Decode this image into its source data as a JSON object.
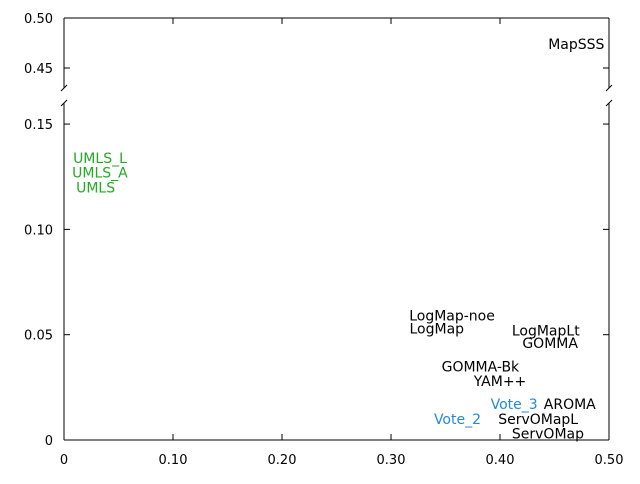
{
  "chart_data": {
    "type": "scatter",
    "title": "",
    "xlabel": "",
    "ylabel": "",
    "xlim": [
      0,
      0.5
    ],
    "ylim": [
      0,
      0.5
    ],
    "y_axis_break": [
      0.16,
      0.43
    ],
    "grid": false,
    "x_ticks": [
      {
        "value": 0,
        "label": "0"
      },
      {
        "value": 0.1,
        "label": "0.10"
      },
      {
        "value": 0.2,
        "label": "0.20"
      },
      {
        "value": 0.3,
        "label": "0.30"
      },
      {
        "value": 0.4,
        "label": "0.40"
      },
      {
        "value": 0.5,
        "label": "0.50"
      }
    ],
    "y_ticks": [
      {
        "value": 0,
        "label": "0"
      },
      {
        "value": 0.05,
        "label": "0.05"
      },
      {
        "value": 0.1,
        "label": "0.10"
      },
      {
        "value": 0.15,
        "label": "0.15"
      },
      {
        "value": 0.45,
        "label": "0.45"
      },
      {
        "value": 0.5,
        "label": "0.50"
      }
    ],
    "colors": {
      "black": "#000000",
      "green": "#22aa22",
      "blue": "#2288dd"
    },
    "points": [
      {
        "label": "MapSSS",
        "x": 0.47,
        "y": 0.474,
        "color": "black"
      },
      {
        "label": "UMLS_L",
        "x": 0.033,
        "y": 0.134,
        "color": "green"
      },
      {
        "label": "UMLS_A",
        "x": 0.033,
        "y": 0.127,
        "color": "green"
      },
      {
        "label": "UMLS",
        "x": 0.029,
        "y": 0.12,
        "color": "green"
      },
      {
        "label": "LogMap-noe",
        "x": 0.356,
        "y": 0.059,
        "color": "black"
      },
      {
        "label": "LogMap",
        "x": 0.342,
        "y": 0.053,
        "color": "black"
      },
      {
        "label": "LogMapLt",
        "x": 0.442,
        "y": 0.052,
        "color": "black"
      },
      {
        "label": "GOMMA",
        "x": 0.446,
        "y": 0.046,
        "color": "black"
      },
      {
        "label": "GOMMA-Bk",
        "x": 0.382,
        "y": 0.035,
        "color": "black"
      },
      {
        "label": "YAM++",
        "x": 0.4,
        "y": 0.028,
        "color": "black"
      },
      {
        "label": "Vote_3",
        "x": 0.413,
        "y": 0.017,
        "color": "blue"
      },
      {
        "label": "AROMA",
        "x": 0.464,
        "y": 0.017,
        "color": "black"
      },
      {
        "label": "Vote_2",
        "x": 0.361,
        "y": 0.01,
        "color": "blue"
      },
      {
        "label": "ServOMapL",
        "x": 0.435,
        "y": 0.01,
        "color": "black"
      },
      {
        "label": "ServOMap",
        "x": 0.444,
        "y": 0.003,
        "color": "black"
      }
    ]
  }
}
